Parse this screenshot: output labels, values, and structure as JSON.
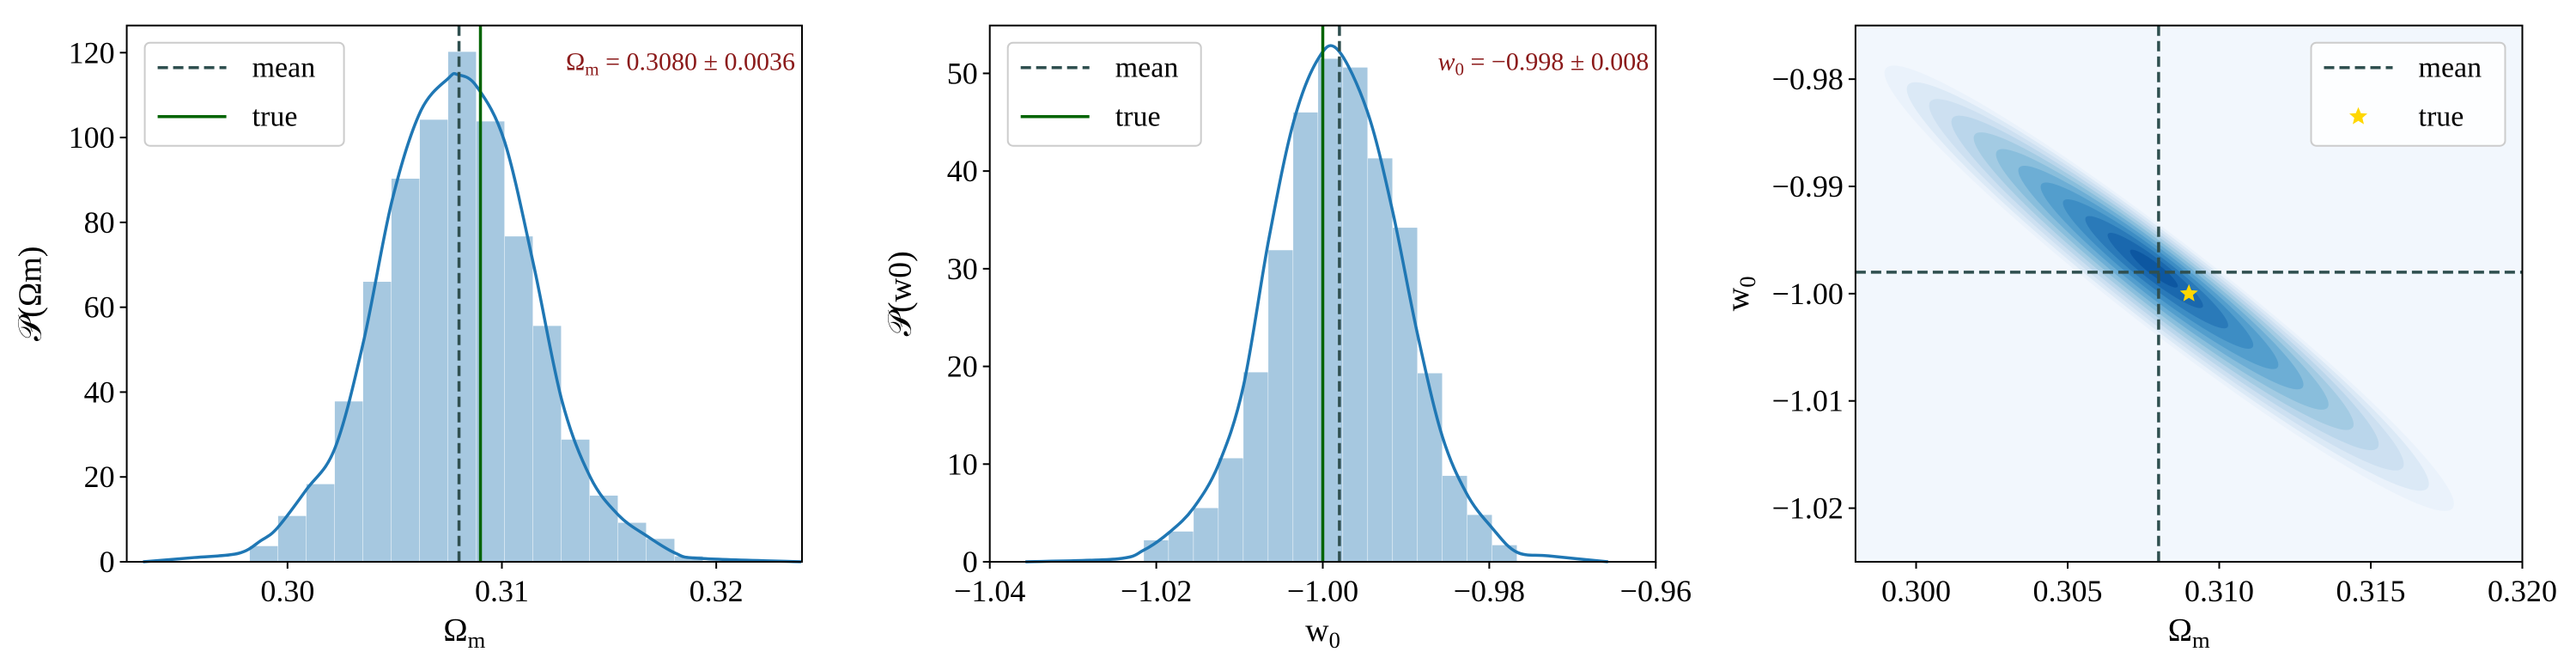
{
  "colors": {
    "hist": "#a6c8e0",
    "kde": "#1f77b4",
    "mean": "#2f4f4f",
    "true": "#006400",
    "star": "#ffd700",
    "annotation": "#8b1a1a"
  },
  "chart_data": [
    {
      "type": "bar",
      "subtype": "histogram+kde",
      "xlabel": "Ωm",
      "ylabel": "𝒫(Ωm)",
      "xlim": [
        0.2925,
        0.324
      ],
      "ylim": [
        0,
        126.4
      ],
      "xticks": [
        "0.30",
        "0.31",
        "0.32"
      ],
      "xtick_values": [
        0.3,
        0.31,
        0.32
      ],
      "yticks": [
        "0",
        "20",
        "40",
        "60",
        "80",
        "100",
        "120"
      ],
      "ytick_values": [
        0,
        20,
        40,
        60,
        80,
        100,
        120
      ],
      "bin_start": 0.29824,
      "bin_width": 0.001322,
      "values": [
        3.7,
        10.8,
        18.3,
        37.8,
        66,
        90.3,
        104.2,
        120.2,
        103.8,
        76.7,
        55.6,
        28.8,
        15.6,
        9.2,
        5.4,
        1.3
      ],
      "kde_x": [
        0.29326,
        0.29565,
        0.29772,
        0.29876,
        0.29953,
        0.30088,
        0.30223,
        0.30355,
        0.30487,
        0.30619,
        0.30751,
        0.30795,
        0.30883,
        0.31013,
        0.31148,
        0.3128,
        0.31412,
        0.31544,
        0.31679,
        0.31811,
        0.31922,
        0.32396
      ],
      "kde_y": [
        0,
        1,
        2,
        5,
        8,
        17,
        27,
        52,
        85,
        106,
        114,
        114.8,
        112,
        99,
        70,
        38,
        20,
        11,
        6,
        2,
        0.8,
        0
      ],
      "mean": 0.308,
      "true": 0.309,
      "legend": {
        "position": "upper-left",
        "mean_label": "mean",
        "true_label": "true"
      },
      "annotation": {
        "symbol": "Ωm",
        "text": " = 0.3080 ± 0.0036"
      }
    },
    {
      "type": "bar",
      "subtype": "histogram+kde",
      "xlabel": "w0",
      "ylabel": "𝒫(w0)",
      "xlim": [
        -1.04,
        -0.96
      ],
      "ylim": [
        0,
        54.9
      ],
      "xticks": [
        "−1.04",
        "−1.02",
        "−1.00",
        "−0.98",
        "−0.96"
      ],
      "xtick_values": [
        -1.04,
        -1.02,
        -1.0,
        -0.98,
        -0.96
      ],
      "yticks": [
        "0",
        "10",
        "20",
        "30",
        "40",
        "50"
      ],
      "ytick_values": [
        0,
        10,
        20,
        30,
        40,
        50
      ],
      "bin_start": -1.02149,
      "bin_width": 0.00299,
      "values": [
        2.2,
        3.1,
        5.5,
        10.6,
        19.4,
        31.9,
        46,
        51.5,
        50.6,
        41.3,
        34.2,
        19.3,
        8.8,
        4.8,
        1.7
      ],
      "kde_x": [
        -1.03572,
        -1.02466,
        -1.02149,
        -1.01845,
        -1.01554,
        -1.0125,
        -1.00953,
        -1.00649,
        -1.00352,
        -1.00055,
        -0.99818,
        -0.99461,
        -0.99164,
        -0.98867,
        -0.9857,
        -0.98273,
        -0.97969,
        -0.97672,
        -0.97285,
        -0.96573
      ],
      "kde_y": [
        0,
        0.3,
        1.2,
        3,
        5.5,
        10,
        18,
        33,
        45,
        51.5,
        52.4,
        46,
        36,
        23.5,
        13,
        7,
        3.5,
        1,
        0.6,
        0
      ],
      "mean": -0.998,
      "true": -1.0,
      "legend": {
        "position": "upper-left",
        "mean_label": "mean",
        "true_label": "true"
      },
      "annotation": {
        "symbol": "w0",
        "text": " = −0.998 ± 0.008"
      }
    },
    {
      "type": "heatmap",
      "subtype": "2d-kde-contour",
      "xlabel": "Ωm",
      "ylabel": "w0",
      "xlim": [
        0.298,
        0.32
      ],
      "ylim": [
        -1.025,
        -0.975
      ],
      "xticks": [
        "0.300",
        "0.305",
        "0.310",
        "0.315",
        "0.320"
      ],
      "xtick_values": [
        0.3,
        0.305,
        0.31,
        0.315,
        0.32
      ],
      "yticks": [
        "−0.98",
        "−0.99",
        "−1.00",
        "−1.01",
        "−1.02"
      ],
      "ytick_values": [
        -0.98,
        -0.99,
        -1.0,
        -1.01,
        -1.02
      ],
      "colormap": "Blues",
      "density_peak": [
        0.3078,
        -0.9975
      ],
      "outer_contour_ends": [
        [
          0.299,
          -0.979
        ],
        [
          0.3177,
          -1.02
        ]
      ],
      "mean": [
        0.308,
        -0.998
      ],
      "true": [
        0.309,
        -1.0
      ],
      "legend": {
        "position": "upper-right",
        "mean_label": "mean",
        "true_label": "true"
      }
    }
  ]
}
